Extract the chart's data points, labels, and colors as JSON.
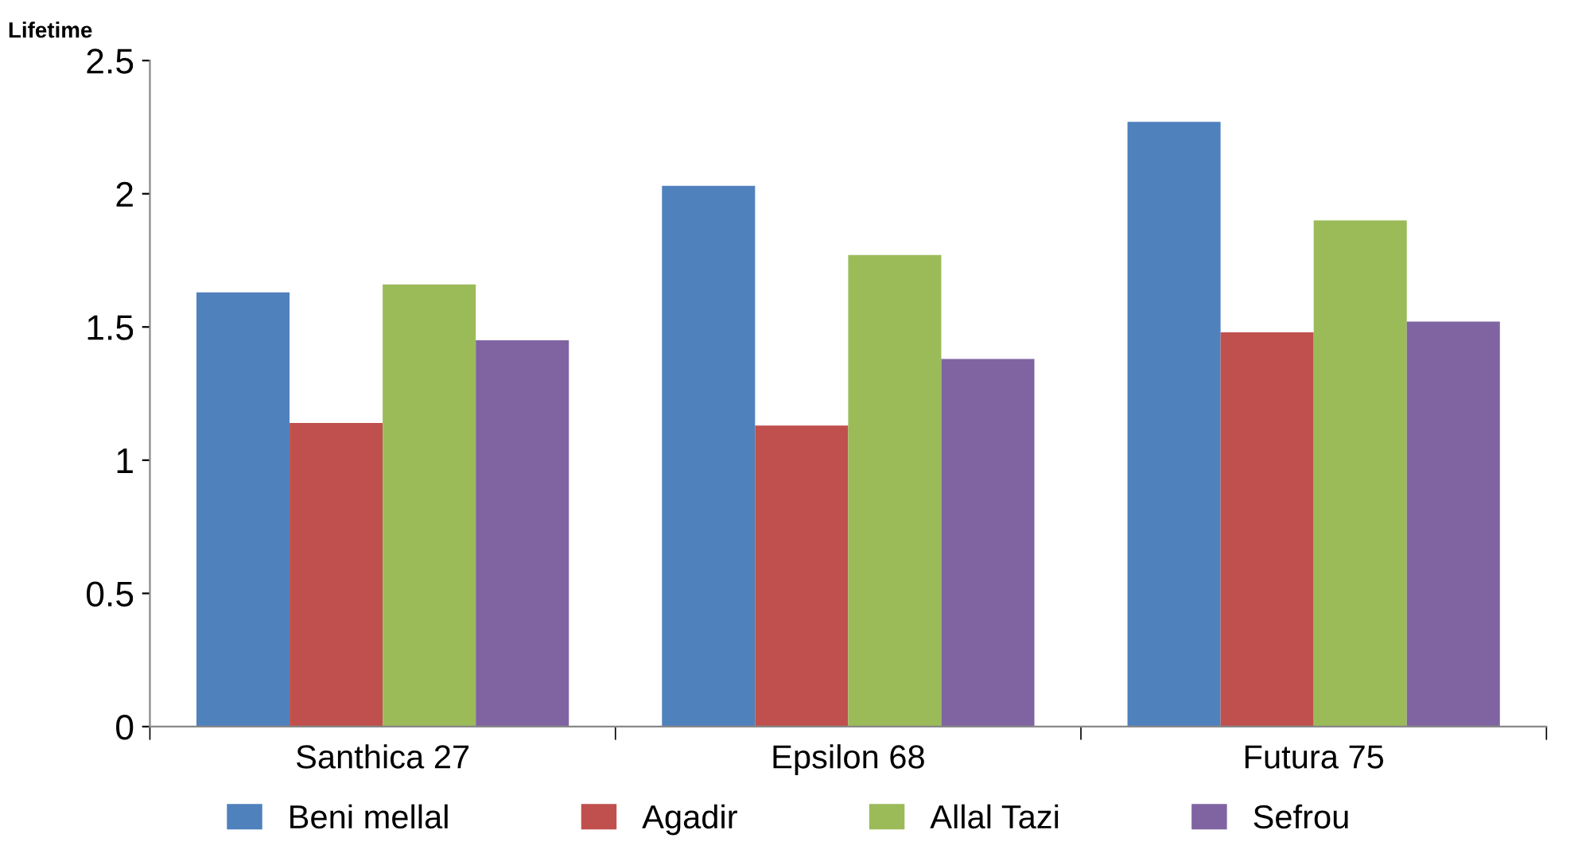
{
  "chart_data": {
    "type": "bar",
    "ylabel": "Lifetime",
    "categories": [
      "Santhica 27",
      "Epsilon 68",
      "Futura 75"
    ],
    "series": [
      {
        "name": "Beni mellal",
        "color": "#4f81bd",
        "values": [
          1.63,
          2.03,
          2.27
        ]
      },
      {
        "name": "Agadir",
        "color": "#c0504d",
        "values": [
          1.14,
          1.13,
          1.48
        ]
      },
      {
        "name": "Allal Tazi",
        "color": "#9bbb59",
        "values": [
          1.66,
          1.77,
          1.9
        ]
      },
      {
        "name": "Sefrou",
        "color": "#8064a2",
        "values": [
          1.45,
          1.38,
          1.52
        ]
      }
    ],
    "ylim": [
      0,
      2.5
    ],
    "yticks": [
      0,
      0.5,
      1,
      1.5,
      2,
      2.5
    ],
    "legend": "bottom"
  }
}
